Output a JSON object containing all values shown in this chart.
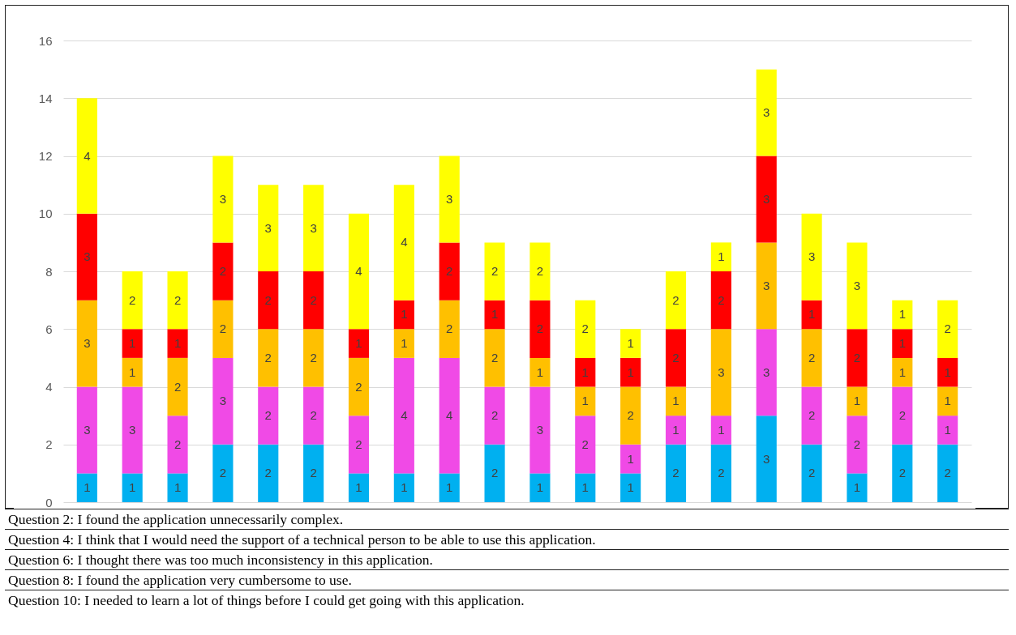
{
  "chart_data": {
    "type": "bar",
    "stacked": true,
    "data_labels": true,
    "grid": "y",
    "legend": false,
    "tick_labels": "y",
    "categories": [
      null,
      null,
      null,
      null,
      null,
      null,
      null,
      null,
      null,
      null,
      null,
      null,
      null,
      null,
      null,
      null,
      null,
      null,
      null,
      null
    ],
    "ylim": [
      0,
      16
    ],
    "yticks": [
      0,
      2,
      4,
      6,
      8,
      10,
      12,
      14,
      16
    ],
    "series": [
      {
        "color": "#00b0f0",
        "values": [
          1,
          1,
          1,
          2,
          2,
          2,
          1,
          1,
          1,
          2,
          1,
          1,
          1,
          2,
          2,
          3,
          2,
          1,
          2,
          2
        ]
      },
      {
        "color": "#f04ae6",
        "values": [
          3,
          3,
          2,
          3,
          2,
          2,
          2,
          4,
          4,
          2,
          3,
          2,
          1,
          1,
          1,
          3,
          2,
          2,
          2,
          1
        ]
      },
      {
        "color": "#ffc000",
        "values": [
          3,
          1,
          2,
          2,
          2,
          2,
          2,
          1,
          2,
          2,
          1,
          1,
          2,
          1,
          3,
          3,
          2,
          1,
          1,
          1
        ]
      },
      {
        "color": "#ff0000",
        "values": [
          3,
          1,
          1,
          2,
          2,
          2,
          1,
          1,
          2,
          1,
          2,
          1,
          1,
          2,
          2,
          3,
          1,
          2,
          1,
          1
        ]
      },
      {
        "color": "#ffff00",
        "values": [
          4,
          2,
          2,
          3,
          3,
          3,
          4,
          4,
          3,
          2,
          2,
          2,
          1,
          2,
          1,
          3,
          3,
          3,
          1,
          2
        ]
      }
    ],
    "annotations": [
      "Question 2: I found the application unnecessarily complex.",
      "Question 4: I think that I would need the support of a technical person to be able to use this application.",
      "Question 6: I thought there was too much inconsistency in this application.",
      "Question 8: I found the application very cumbersome to use.",
      "Question 10: I needed to learn a lot of things before I could get going with this application."
    ]
  }
}
